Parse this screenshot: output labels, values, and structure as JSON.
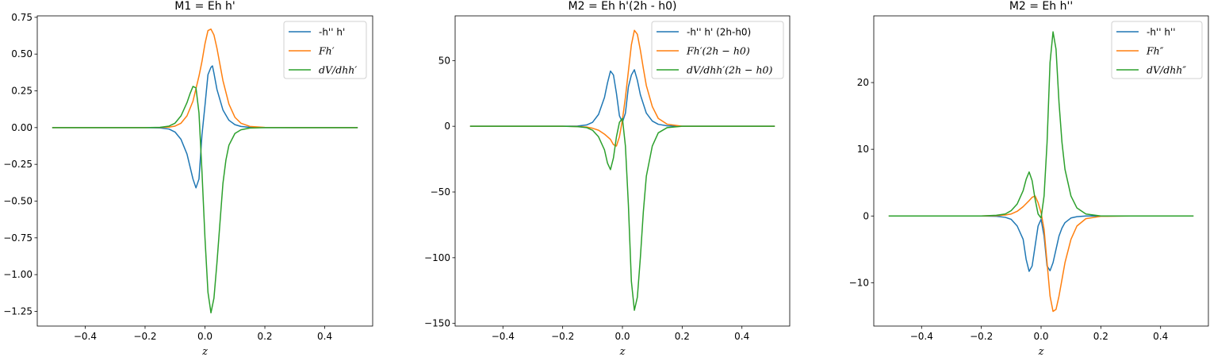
{
  "chart_data": [
    {
      "type": "line",
      "title": "M1 = Eh h'",
      "xlabel": "z",
      "ylabel": "",
      "xlim": [
        -0.56,
        0.56
      ],
      "ylim": [
        -1.35,
        0.76
      ],
      "xticks": [
        -0.4,
        -0.2,
        0.0,
        0.2,
        0.4
      ],
      "xtick_labels": [
        "−0.4",
        "−0.2",
        "0.0",
        "0.2",
        "0.4"
      ],
      "yticks": [
        0.75,
        0.5,
        0.25,
        0.0,
        -0.25,
        -0.5,
        -0.75,
        -1.0,
        -1.25
      ],
      "ytick_labels": [
        "0.75",
        "0.50",
        "0.25",
        "0.00",
        "−0.25",
        "−0.50",
        "−0.75",
        "−1.00",
        "−1.25"
      ],
      "legend_position": "upper right",
      "grid": false,
      "series": [
        {
          "name": "-h'' h'",
          "italic": false,
          "color": "#1f77b4",
          "x": [
            -0.51,
            -0.4,
            -0.3,
            -0.2,
            -0.15,
            -0.12,
            -0.1,
            -0.08,
            -0.06,
            -0.04,
            -0.03,
            -0.02,
            -0.01,
            0.0,
            0.01,
            0.02,
            0.025,
            0.03,
            0.04,
            0.06,
            0.08,
            0.1,
            0.12,
            0.15,
            0.2,
            0.3,
            0.4,
            0.51
          ],
          "y": [
            0,
            0,
            0,
            0,
            -0.002,
            -0.01,
            -0.03,
            -0.08,
            -0.18,
            -0.35,
            -0.41,
            -0.35,
            -0.05,
            0.15,
            0.36,
            0.41,
            0.42,
            0.37,
            0.26,
            0.12,
            0.05,
            0.02,
            0.008,
            0.002,
            0,
            0,
            0,
            0
          ]
        },
        {
          "name": "Fh′",
          "italic": true,
          "color": "#ff7f0e",
          "x": [
            -0.51,
            -0.4,
            -0.3,
            -0.2,
            -0.15,
            -0.12,
            -0.1,
            -0.08,
            -0.06,
            -0.04,
            -0.02,
            -0.01,
            0.0,
            0.01,
            0.02,
            0.03,
            0.04,
            0.05,
            0.06,
            0.08,
            0.1,
            0.12,
            0.15,
            0.2,
            0.3,
            0.4,
            0.51
          ],
          "y": [
            0,
            0,
            0,
            0,
            0.001,
            0.003,
            0.01,
            0.03,
            0.08,
            0.18,
            0.35,
            0.45,
            0.57,
            0.66,
            0.67,
            0.63,
            0.54,
            0.43,
            0.32,
            0.16,
            0.07,
            0.03,
            0.008,
            0.001,
            0,
            0,
            0
          ]
        },
        {
          "name": "dV/dhh′",
          "italic": true,
          "color": "#2ca02c",
          "x": [
            -0.51,
            -0.4,
            -0.3,
            -0.2,
            -0.15,
            -0.12,
            -0.1,
            -0.08,
            -0.06,
            -0.05,
            -0.04,
            -0.03,
            -0.02,
            -0.01,
            0.0,
            0.01,
            0.02,
            0.03,
            0.04,
            0.05,
            0.06,
            0.07,
            0.08,
            0.1,
            0.12,
            0.15,
            0.2,
            0.3,
            0.4,
            0.51
          ],
          "y": [
            0,
            0,
            0,
            0,
            0.002,
            0.01,
            0.03,
            0.08,
            0.17,
            0.23,
            0.28,
            0.27,
            0.1,
            -0.3,
            -0.75,
            -1.12,
            -1.26,
            -1.16,
            -0.92,
            -0.65,
            -0.38,
            -0.22,
            -0.12,
            -0.04,
            -0.015,
            -0.003,
            0,
            0,
            0,
            0
          ]
        }
      ]
    },
    {
      "type": "line",
      "title": "M2 = Eh h'(2h - h0)",
      "xlabel": "z",
      "ylabel": "",
      "xlim": [
        -0.56,
        0.56
      ],
      "ylim": [
        -152,
        84
      ],
      "xticks": [
        -0.4,
        -0.2,
        0.0,
        0.2,
        0.4
      ],
      "xtick_labels": [
        "−0.4",
        "−0.2",
        "0.0",
        "0.2",
        "0.4"
      ],
      "yticks": [
        50,
        0,
        -50,
        -100,
        -150
      ],
      "ytick_labels": [
        "50",
        "0",
        "−50",
        "−100",
        "−150"
      ],
      "legend_position": "upper right",
      "grid": false,
      "series": [
        {
          "name": "-h'' h' (2h-h0)",
          "italic": false,
          "color": "#1f77b4",
          "x": [
            -0.51,
            -0.4,
            -0.3,
            -0.2,
            -0.15,
            -0.12,
            -0.1,
            -0.08,
            -0.06,
            -0.05,
            -0.04,
            -0.03,
            -0.02,
            -0.01,
            0.0,
            0.01,
            0.02,
            0.03,
            0.04,
            0.05,
            0.06,
            0.08,
            0.1,
            0.12,
            0.15,
            0.2,
            0.3,
            0.4,
            0.51
          ],
          "y": [
            0,
            0,
            0,
            0,
            0.2,
            1,
            3,
            9,
            22,
            33,
            42,
            39,
            25,
            8,
            3,
            10,
            30,
            39,
            43,
            35,
            24,
            10,
            4,
            1.5,
            0.3,
            0,
            0,
            0,
            0
          ]
        },
        {
          "name": "Fh′(2h − h0)",
          "italic": true,
          "color": "#ff7f0e",
          "x": [
            -0.51,
            -0.4,
            -0.3,
            -0.2,
            -0.15,
            -0.12,
            -0.1,
            -0.08,
            -0.06,
            -0.04,
            -0.03,
            -0.02,
            -0.01,
            0.0,
            0.01,
            0.02,
            0.03,
            0.04,
            0.05,
            0.06,
            0.07,
            0.08,
            0.1,
            0.12,
            0.15,
            0.2,
            0.3,
            0.4,
            0.51
          ],
          "y": [
            0,
            0,
            0,
            0,
            -0.2,
            -0.6,
            -1.5,
            -3,
            -6,
            -10,
            -14,
            -15,
            -8,
            5,
            22,
            42,
            62,
            73,
            70,
            58,
            44,
            31,
            15,
            6,
            1.5,
            0,
            0,
            0,
            0
          ]
        },
        {
          "name": "dV/dhh′(2h − h0)",
          "italic": true,
          "color": "#2ca02c",
          "x": [
            -0.51,
            -0.4,
            -0.3,
            -0.2,
            -0.15,
            -0.12,
            -0.1,
            -0.08,
            -0.06,
            -0.05,
            -0.04,
            -0.03,
            -0.02,
            -0.01,
            0.0,
            0.01,
            0.02,
            0.03,
            0.04,
            0.05,
            0.06,
            0.07,
            0.08,
            0.1,
            0.12,
            0.15,
            0.2,
            0.3,
            0.4,
            0.51
          ],
          "y": [
            0,
            0,
            0,
            0,
            -0.3,
            -1,
            -3,
            -8,
            -18,
            -28,
            -33,
            -24,
            -8,
            3,
            6,
            -15,
            -60,
            -118,
            -140,
            -130,
            -100,
            -65,
            -38,
            -15,
            -5,
            -1,
            0,
            0,
            0,
            0
          ]
        }
      ]
    },
    {
      "type": "line",
      "title": "M2 = Eh h''",
      "xlabel": "z",
      "ylabel": "",
      "xlim": [
        -0.56,
        0.56
      ],
      "ylim": [
        -16.5,
        30
      ],
      "xticks": [
        -0.4,
        -0.2,
        0.0,
        0.2,
        0.4
      ],
      "xtick_labels": [
        "−0.4",
        "−0.2",
        "0.0",
        "0.2",
        "0.4"
      ],
      "yticks": [
        20,
        10,
        0,
        -10
      ],
      "ytick_labels": [
        "20",
        "10",
        "0",
        "−10"
      ],
      "legend_position": "upper right",
      "grid": false,
      "series": [
        {
          "name": "-h'' h''",
          "italic": false,
          "color": "#1f77b4",
          "x": [
            -0.51,
            -0.4,
            -0.3,
            -0.2,
            -0.15,
            -0.12,
            -0.1,
            -0.08,
            -0.06,
            -0.05,
            -0.04,
            -0.03,
            -0.02,
            -0.01,
            0.0,
            0.01,
            0.02,
            0.03,
            0.04,
            0.05,
            0.06,
            0.07,
            0.08,
            0.1,
            0.12,
            0.15,
            0.2,
            0.3,
            0.4,
            0.51
          ],
          "y": [
            0,
            0,
            0,
            0,
            -0.05,
            -0.2,
            -0.5,
            -1.5,
            -3.5,
            -6.5,
            -8.3,
            -7.5,
            -4.5,
            -1.5,
            -0.5,
            -3,
            -7.5,
            -8.2,
            -7,
            -5,
            -3,
            -1.8,
            -1,
            -0.3,
            -0.1,
            0,
            0,
            0,
            0,
            0
          ]
        },
        {
          "name": "Fh″",
          "italic": true,
          "color": "#ff7f0e",
          "x": [
            -0.51,
            -0.4,
            -0.3,
            -0.2,
            -0.15,
            -0.12,
            -0.1,
            -0.08,
            -0.06,
            -0.04,
            -0.03,
            -0.02,
            -0.01,
            0.0,
            0.01,
            0.02,
            0.03,
            0.04,
            0.05,
            0.06,
            0.07,
            0.08,
            0.1,
            0.12,
            0.15,
            0.2,
            0.3,
            0.4,
            0.51
          ],
          "y": [
            0,
            0,
            0,
            0,
            0.05,
            0.15,
            0.3,
            0.7,
            1.4,
            2.3,
            2.8,
            3,
            2,
            0.5,
            -2,
            -7,
            -12,
            -14.3,
            -14,
            -12,
            -9.5,
            -7,
            -3.5,
            -1.5,
            -0.4,
            -0.05,
            0,
            0,
            0
          ]
        },
        {
          "name": "dV/dhh″",
          "italic": true,
          "color": "#2ca02c",
          "x": [
            -0.51,
            -0.4,
            -0.3,
            -0.2,
            -0.15,
            -0.12,
            -0.1,
            -0.08,
            -0.06,
            -0.05,
            -0.04,
            -0.03,
            -0.02,
            -0.01,
            0.0,
            0.01,
            0.02,
            0.03,
            0.04,
            0.05,
            0.06,
            0.07,
            0.08,
            0.1,
            0.12,
            0.15,
            0.2,
            0.3,
            0.4,
            0.51
          ],
          "y": [
            0,
            0,
            0,
            0,
            0.1,
            0.3,
            0.8,
            1.8,
            3.8,
            5.5,
            6.6,
            5.3,
            2.5,
            0.3,
            -0.3,
            3,
            11,
            23,
            27.6,
            25,
            17,
            11,
            7,
            3,
            1.2,
            0.3,
            0,
            0,
            0,
            0
          ]
        }
      ]
    }
  ]
}
